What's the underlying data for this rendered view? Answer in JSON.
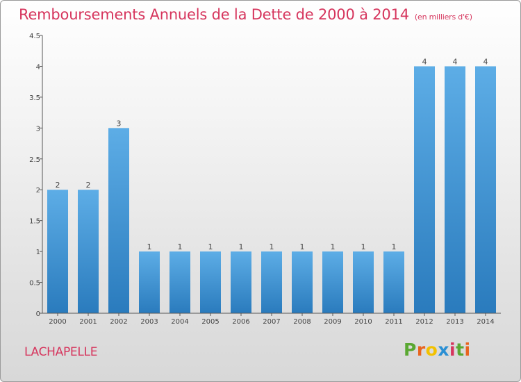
{
  "chart_data": {
    "type": "bar",
    "title": "Remboursements Annuels de la Dette de 2000 à 2014",
    "subtitle": "(en milliers d'€)",
    "xlabel": "",
    "ylabel": "",
    "categories": [
      "2000",
      "2001",
      "2002",
      "2003",
      "2004",
      "2005",
      "2006",
      "2007",
      "2008",
      "2009",
      "2010",
      "2011",
      "2012",
      "2013",
      "2014"
    ],
    "values": [
      2,
      2,
      3,
      1,
      1,
      1,
      1,
      1,
      1,
      1,
      1,
      1,
      4,
      4,
      4
    ],
    "data_labels": [
      "2",
      "2",
      "3",
      "1",
      "1",
      "1",
      "1",
      "1",
      "1",
      "1",
      "1",
      "1",
      "4",
      "4",
      "4"
    ],
    "ylim": [
      0,
      4.5
    ],
    "yticks": [
      "0",
      "0.5",
      "1",
      "1.5",
      "2",
      "2.5",
      "3",
      "3.5",
      "4",
      "4.5"
    ],
    "grid": false,
    "bar_color_top": "#5dade6",
    "bar_color_bottom": "#2a7bbd"
  },
  "place_name": "LACHAPELLE",
  "logo": {
    "letters": [
      "P",
      "r",
      "o",
      "x",
      "i",
      "t",
      "i"
    ],
    "colors": [
      "#5aa832",
      "#e8641e",
      "#f2c100",
      "#2a8fd4",
      "#d6355d",
      "#5aa832",
      "#e8641e"
    ]
  },
  "colors": {
    "title": "#d6355d",
    "axis": "#555555"
  }
}
